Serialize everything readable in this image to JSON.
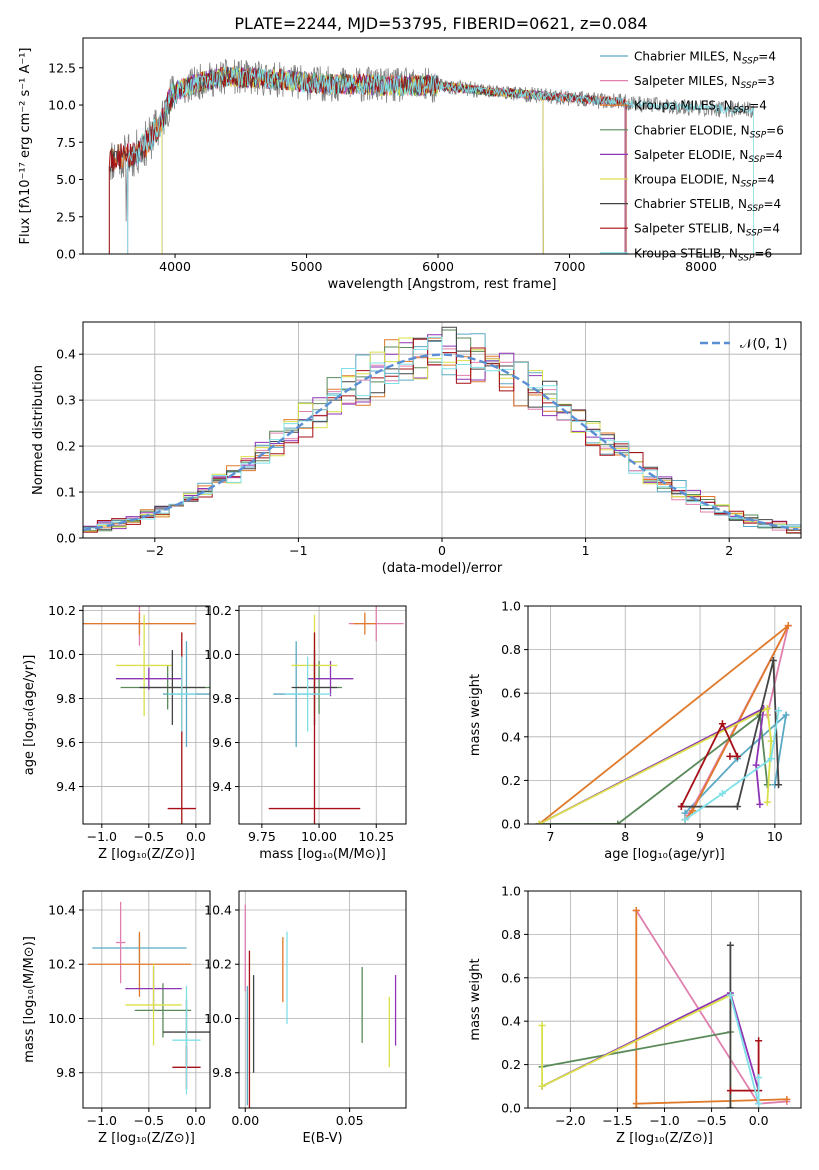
{
  "figure_title": "PLATE=2244, MJD=53795, FIBERID=0621, z=0.084",
  "models": [
    {
      "name": "Chabrier MILES",
      "nssp": "4",
      "color": "#5aa9c4"
    },
    {
      "name": "Salpeter MILES",
      "nssp": "3",
      "color": "#e07fae"
    },
    {
      "name": "Kroupa MILES",
      "nssp": "4",
      "color": "#e07a2a"
    },
    {
      "name": "Chabrier ELODIE",
      "nssp": "6",
      "color": "#5a8a5a"
    },
    {
      "name": "Salpeter ELODIE",
      "nssp": "4",
      "color": "#8e35b5"
    },
    {
      "name": "Kroupa ELODIE",
      "nssp": "4",
      "color": "#d9e04a"
    },
    {
      "name": "Chabrier STELIB",
      "nssp": "4",
      "color": "#444444"
    },
    {
      "name": "Salpeter STELIB",
      "nssp": "4",
      "color": "#a50f15"
    },
    {
      "name": "Kroupa STELIB",
      "nssp": "6",
      "color": "#7fe0e8"
    }
  ],
  "data_color": "#808080",
  "chart_data": [
    {
      "id": "spectrum",
      "type": "line",
      "xlabel": "wavelength [Angstrom, rest frame]",
      "ylabel": "Flux [fλ10⁻¹⁷ erg cm⁻² s⁻¹ A⁻¹]",
      "xlim": [
        3300,
        8760
      ],
      "ylim": [
        0,
        14.5
      ],
      "xticks": [
        4000,
        5000,
        6000,
        7000,
        8000
      ],
      "yticks": [
        0.0,
        2.5,
        5.0,
        7.5,
        10.0,
        12.5
      ],
      "continuum": [
        [
          3500,
          6.3
        ],
        [
          3600,
          6.6
        ],
        [
          3700,
          6.7
        ],
        [
          3800,
          7.6
        ],
        [
          3900,
          8.9
        ],
        [
          3950,
          10.2
        ],
        [
          4000,
          10.9
        ],
        [
          4100,
          11.2
        ],
        [
          4200,
          11.6
        ],
        [
          4400,
          11.9
        ],
        [
          4600,
          11.8
        ],
        [
          4800,
          11.7
        ],
        [
          5000,
          11.5
        ],
        [
          5200,
          11.4
        ],
        [
          5400,
          11.4
        ],
        [
          5600,
          11.3
        ],
        [
          5800,
          11.3
        ],
        [
          6000,
          11.3
        ],
        [
          6200,
          11.1
        ],
        [
          6400,
          10.9
        ],
        [
          6600,
          10.8
        ],
        [
          6800,
          10.6
        ],
        [
          7000,
          10.5
        ],
        [
          7200,
          10.3
        ],
        [
          7400,
          10.2
        ],
        [
          7600,
          10.0
        ],
        [
          7800,
          9.9
        ],
        [
          8000,
          9.8
        ],
        [
          8200,
          9.7
        ],
        [
          8400,
          9.7
        ]
      ],
      "data_range": [
        3500,
        8400
      ],
      "model_ranges": [
        [
          3640,
          7420
        ],
        [
          3640,
          7420
        ],
        [
          3500,
          7430
        ],
        [
          3900,
          6800
        ],
        [
          3900,
          6800
        ],
        [
          3900,
          6800
        ],
        [
          3500,
          7430
        ],
        [
          3500,
          7430
        ],
        [
          3640,
          8400
        ]
      ]
    },
    {
      "id": "residual_hist",
      "type": "histogram",
      "xlabel": "(data-model)/error",
      "ylabel": "Normed distribution",
      "xlim": [
        -2.5,
        2.5
      ],
      "ylim": [
        0,
        0.47
      ],
      "xticks": [
        -2,
        -1,
        0,
        1,
        2
      ],
      "yticks": [
        0.0,
        0.1,
        0.2,
        0.3,
        0.4
      ],
      "bin_width": 0.1,
      "legend_label": "𝒩(0, 1)",
      "gaussian_color": "#5b8fd4"
    },
    {
      "id": "age_vs_Z",
      "type": "errorbar",
      "xlabel": "Z [log₁₀(Z/Z⊙)]",
      "ylabel": "age  [log₁₀(age/yr)]",
      "xlim": [
        -1.2,
        0.15
      ],
      "ylim": [
        9.23,
        10.22
      ],
      "xticks": [
        -1.0,
        -0.5,
        0.0
      ],
      "yticks": [
        9.4,
        9.6,
        9.8,
        10.0,
        10.2
      ],
      "points": [
        {
          "x": -0.1,
          "xerr": 0.25,
          "y": 9.82,
          "yerr": 0.24
        },
        {
          "x": -0.6,
          "xerr": 0.6,
          "y": 10.14,
          "yerr": 0.1
        },
        {
          "x": -0.6,
          "xerr": 0.6,
          "y": 10.14,
          "yerr": 0.05
        },
        {
          "x": -0.3,
          "xerr": 0.5,
          "y": 9.85,
          "yerr": 0.1
        },
        {
          "x": -0.5,
          "xerr": 0.35,
          "y": 9.89,
          "yerr": 0.05
        },
        {
          "x": -0.55,
          "xerr": 0.3,
          "y": 9.95,
          "yerr": 0.23
        },
        {
          "x": -0.25,
          "xerr": 0.35,
          "y": 9.85,
          "yerr": 0.17
        },
        {
          "x": -0.15,
          "xerr": 0.15,
          "y": 9.3,
          "yerr": 0.8
        },
        {
          "x": -0.15,
          "xerr": 0.15,
          "y": 9.82,
          "yerr": 0.17
        }
      ]
    },
    {
      "id": "age_vs_mass",
      "type": "errorbar",
      "xlabel": "mass [log₁₀(M/M⊙)]",
      "ylabel": "",
      "xlim": [
        9.65,
        10.38
      ],
      "ylim": [
        9.23,
        10.22
      ],
      "xticks": [
        9.75,
        10.0,
        10.25
      ],
      "yticks": [
        9.4,
        9.6,
        9.8,
        10.0,
        10.2
      ],
      "points": [
        {
          "x": 9.9,
          "xerr": 0.1,
          "y": 9.82,
          "yerr": 0.24
        },
        {
          "x": 10.25,
          "xerr": 0.12,
          "y": 10.14,
          "yerr": 0.08
        },
        {
          "x": 10.2,
          "xerr": 0.05,
          "y": 10.14,
          "yerr": 0.05
        },
        {
          "x": 10.0,
          "xerr": 0.1,
          "y": 9.85,
          "yerr": 0.12
        },
        {
          "x": 10.05,
          "xerr": 0.1,
          "y": 9.89,
          "yerr": 0.08
        },
        {
          "x": 9.98,
          "xerr": 0.1,
          "y": 9.95,
          "yerr": 0.23
        },
        {
          "x": 9.98,
          "xerr": 0.1,
          "y": 9.85,
          "yerr": 0.17
        },
        {
          "x": 9.98,
          "xerr": 0.2,
          "y": 9.3,
          "yerr": 0.8
        },
        {
          "x": 9.95,
          "xerr": 0.1,
          "y": 9.82,
          "yerr": 0.17
        }
      ]
    },
    {
      "id": "massweight_vs_age",
      "type": "line",
      "xlabel": "age  [log₁₀(age/yr)]",
      "ylabel": "mass weight",
      "xlim": [
        6.7,
        10.35
      ],
      "ylim": [
        0,
        1.0
      ],
      "xticks": [
        7,
        8,
        9,
        10
      ],
      "yticks": [
        0.0,
        0.2,
        0.4,
        0.6,
        0.8,
        1.0
      ],
      "series": [
        {
          "model": 0,
          "points": [
            [
              8.8,
              0.05
            ],
            [
              9.5,
              0.3
            ],
            [
              10.15,
              0.5
            ],
            [
              10.0,
              0.18
            ]
          ]
        },
        {
          "model": 1,
          "points": [
            [
              9.9,
              0.5
            ],
            [
              10.18,
              0.91
            ],
            [
              8.85,
              0.04
            ],
            [
              8.8,
              0.02
            ]
          ]
        },
        {
          "model": 2,
          "points": [
            [
              6.85,
              0.0
            ],
            [
              10.18,
              0.91
            ],
            [
              8.9,
              0.06
            ],
            [
              8.8,
              0.02
            ]
          ]
        },
        {
          "model": 3,
          "points": [
            [
              6.85,
              0.0
            ],
            [
              7.9,
              0.0
            ],
            [
              9.8,
              0.5
            ],
            [
              9.9,
              0.18
            ]
          ]
        },
        {
          "model": 4,
          "points": [
            [
              6.85,
              0.0
            ],
            [
              9.85,
              0.53
            ],
            [
              9.75,
              0.27
            ],
            [
              9.8,
              0.09
            ]
          ]
        },
        {
          "model": 5,
          "points": [
            [
              6.85,
              0.0
            ],
            [
              9.9,
              0.53
            ],
            [
              9.95,
              0.38
            ],
            [
              9.9,
              0.1
            ]
          ]
        },
        {
          "model": 6,
          "points": [
            [
              8.75,
              0.08
            ],
            [
              9.5,
              0.08
            ],
            [
              9.98,
              0.75
            ],
            [
              10.05,
              0.18
            ]
          ]
        },
        {
          "model": 7,
          "points": [
            [
              8.75,
              0.08
            ],
            [
              9.3,
              0.46
            ],
            [
              9.5,
              0.31
            ],
            [
              9.4,
              0.31
            ]
          ]
        },
        {
          "model": 8,
          "points": [
            [
              8.8,
              0.02
            ],
            [
              9.3,
              0.14
            ],
            [
              9.95,
              0.3
            ],
            [
              10.05,
              0.52
            ]
          ]
        }
      ]
    },
    {
      "id": "mass_vs_Z",
      "type": "errorbar",
      "xlabel": "Z [log₁₀(Z/Z⊙)]",
      "ylabel": "mass [log₁₀(M/M⊙)]",
      "xlim": [
        -1.2,
        0.15
      ],
      "ylim": [
        9.67,
        10.47
      ],
      "xticks": [
        -1.0,
        -0.5,
        0.0
      ],
      "yticks": [
        9.8,
        10.0,
        10.2,
        10.4
      ],
      "points": [
        {
          "x": -0.6,
          "xerr": 0.5,
          "y": 10.26,
          "yerr": 0.05
        },
        {
          "x": -0.8,
          "xerr": 0.05,
          "y": 10.28,
          "yerr": 0.15
        },
        {
          "x": -0.6,
          "xerr": 0.55,
          "y": 10.2,
          "yerr": 0.12
        },
        {
          "x": -0.35,
          "xerr": 0.3,
          "y": 10.03,
          "yerr": 0.1
        },
        {
          "x": -0.45,
          "xerr": 0.3,
          "y": 10.11,
          "yerr": 0.08
        },
        {
          "x": -0.45,
          "xerr": 0.3,
          "y": 10.05,
          "yerr": 0.15
        },
        {
          "x": -0.1,
          "xerr": 0.25,
          "y": 9.95,
          "yerr": 0.12
        },
        {
          "x": -0.1,
          "xerr": 0.15,
          "y": 9.82,
          "yerr": 0.08
        },
        {
          "x": -0.1,
          "xerr": 0.15,
          "y": 9.92,
          "yerr": 0.2
        }
      ]
    },
    {
      "id": "mass_vs_EBV",
      "type": "errorbar",
      "xlabel": "E(B-V)",
      "ylabel": "",
      "xlim": [
        -0.003,
        0.077
      ],
      "ylim": [
        9.67,
        10.47
      ],
      "xticks": [
        0.0,
        0.05
      ],
      "yticks": [
        9.8,
        10.0,
        10.2,
        10.4
      ],
      "points": [
        {
          "x": 0.001,
          "xerr": 0,
          "y": 9.9,
          "yerr": 0.22
        },
        {
          "x": 0.0,
          "xerr": 0,
          "y": 10.26,
          "yerr": 0.16
        },
        {
          "x": 0.018,
          "xerr": 0,
          "y": 10.18,
          "yerr": 0.12
        },
        {
          "x": 0.056,
          "xerr": 0,
          "y": 10.05,
          "yerr": 0.14
        },
        {
          "x": 0.072,
          "xerr": 0,
          "y": 10.03,
          "yerr": 0.13
        },
        {
          "x": 0.069,
          "xerr": 0,
          "y": 9.95,
          "yerr": 0.13
        },
        {
          "x": 0.004,
          "xerr": 0,
          "y": 9.98,
          "yerr": 0.18
        },
        {
          "x": 0.002,
          "xerr": 0,
          "y": 9.95,
          "yerr": 0.3
        },
        {
          "x": 0.02,
          "xerr": 0,
          "y": 10.15,
          "yerr": 0.17
        }
      ]
    },
    {
      "id": "massweight_vs_Z",
      "type": "line",
      "xlabel": "Z [log₁₀(Z/Z⊙)]",
      "ylabel": "mass weight",
      "xlim": [
        -2.45,
        0.45
      ],
      "ylim": [
        0,
        1.0
      ],
      "xticks": [
        -2.0,
        -1.5,
        -1.0,
        -0.5,
        0.0
      ],
      "yticks": [
        0.0,
        0.2,
        0.4,
        0.6,
        0.8,
        1.0
      ],
      "series": [
        {
          "model": 1,
          "points": [
            [
              -1.3,
              0.91
            ],
            [
              0.0,
              0.02
            ],
            [
              0.3,
              0.03
            ]
          ]
        },
        {
          "model": 2,
          "points": [
            [
              -1.3,
              0.0
            ],
            [
              -1.3,
              0.91
            ],
            [
              -1.3,
              0.02
            ],
            [
              0.3,
              0.04
            ]
          ]
        },
        {
          "model": 3,
          "points": [
            [
              -2.3,
              0.19
            ],
            [
              -0.3,
              0.35
            ]
          ]
        },
        {
          "model": 4,
          "points": [
            [
              -2.3,
              0.1
            ],
            [
              -0.3,
              0.53
            ],
            [
              0.0,
              0.08
            ]
          ]
        },
        {
          "model": 5,
          "points": [
            [
              -2.3,
              0.38
            ],
            [
              -2.3,
              0.1
            ],
            [
              -0.3,
              0.52
            ],
            [
              -0.3,
              0.0
            ]
          ]
        },
        {
          "model": 6,
          "points": [
            [
              -0.3,
              0.75
            ],
            [
              -0.3,
              0.0
            ]
          ]
        },
        {
          "model": 7,
          "points": [
            [
              0.0,
              0.31
            ],
            [
              0.0,
              0.08
            ],
            [
              -0.3,
              0.08
            ]
          ]
        },
        {
          "model": 8,
          "points": [
            [
              -0.3,
              0.52
            ],
            [
              0.0,
              0.02
            ],
            [
              0.0,
              0.14
            ]
          ]
        }
      ]
    }
  ]
}
